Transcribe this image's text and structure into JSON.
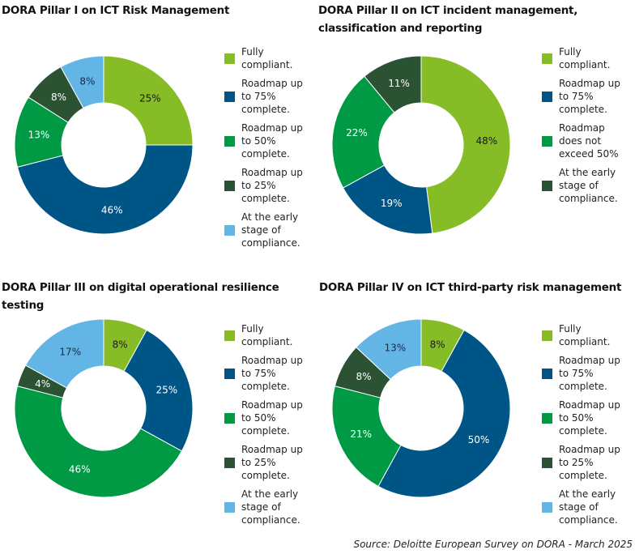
{
  "colors": {
    "fully_compliant": "#86BC25",
    "roadmap_75": "#005587",
    "roadmap_50": "#009A44",
    "roadmap_25": "#2C5234",
    "early_stage": "#62B5E5"
  },
  "chart_data": [
    {
      "type": "pie",
      "title": "DORA Pillar I on ICT Risk Management",
      "categories": [
        "Fully\ncompliant.",
        "Roadmap up\nto 75%\ncomplete.",
        "Roadmap up\nto 50%\ncomplete.",
        "Roadmap up\nto 25%\ncomplete.",
        "At the early\nstage of\ncompliance."
      ],
      "values": [
        25,
        46,
        13,
        8,
        8
      ],
      "labels": [
        "25%",
        "46%",
        "13%",
        "8%",
        "8%"
      ],
      "colors": [
        "#86BC25",
        "#005587",
        "#009A44",
        "#2C5234",
        "#62B5E5"
      ],
      "label_colors": [
        "#1a1a1a",
        "#ffffff",
        "#ffffff",
        "#ffffff",
        "#1a2a4a"
      ],
      "legend_colors": [
        "#86BC25",
        "#005587",
        "#009A44",
        "#2C5234",
        "#62B5E5"
      ],
      "legend": "right",
      "hole": "donut"
    },
    {
      "type": "pie",
      "title": "DORA Pillar II on ICT incident management, classification and reporting",
      "categories": [
        "Fully\ncompliant.",
        "Roadmap up\nto 75%\ncomplete.",
        "Roadmap\ndoes not\nexceed 50%",
        "At the early\nstage of\ncompliance."
      ],
      "values": [
        48,
        19,
        22,
        11
      ],
      "labels": [
        "48%",
        "19%",
        "22%",
        "11%"
      ],
      "colors": [
        "#86BC25",
        "#005587",
        "#009A44",
        "#2C5234"
      ],
      "label_colors": [
        "#1a1a1a",
        "#ffffff",
        "#ffffff",
        "#ffffff"
      ],
      "legend_colors": [
        "#86BC25",
        "#005587",
        "#009A44",
        "#2C5234"
      ],
      "legend": "right",
      "hole": "donut"
    },
    {
      "type": "pie",
      "title": "DORA Pillar III on digital operational resilience testing",
      "categories": [
        "Fully\ncompliant.",
        "Roadmap up\nto 75%\ncomplete.",
        "Roadmap up\nto 50%\ncomplete.",
        "Roadmap up\nto 25%\ncomplete.",
        "At the early\nstage of\ncompliance."
      ],
      "values": [
        8,
        25,
        46,
        4,
        17
      ],
      "labels": [
        "8%",
        "25%",
        "46%",
        "4%",
        "17%"
      ],
      "colors": [
        "#86BC25",
        "#005587",
        "#009A44",
        "#2C5234",
        "#62B5E5"
      ],
      "label_colors": [
        "#1a1a1a",
        "#ffffff",
        "#ffffff",
        "#ffffff",
        "#1a2a4a"
      ],
      "legend_colors": [
        "#86BC25",
        "#005587",
        "#009A44",
        "#2C5234",
        "#62B5E5"
      ],
      "legend": "right",
      "hole": "donut"
    },
    {
      "type": "pie",
      "title": "DORA Pillar IV on ICT third-party risk management",
      "categories": [
        "Fully\ncompliant.",
        "Roadmap up\nto 75%\ncomplete.",
        "Roadmap up\nto 50%\ncomplete.",
        "Roadmap up\nto 25%\ncomplete.",
        "At the early\nstage of\ncompliance."
      ],
      "values": [
        8,
        50,
        21,
        8,
        13
      ],
      "labels": [
        "8%",
        "50%",
        "21%",
        "8%",
        "13%"
      ],
      "colors": [
        "#86BC25",
        "#005587",
        "#009A44",
        "#2C5234",
        "#62B5E5"
      ],
      "label_colors": [
        "#1a1a1a",
        "#ffffff",
        "#ffffff",
        "#ffffff",
        "#1a2a4a"
      ],
      "legend_colors": [
        "#86BC25",
        "#005587",
        "#009A44",
        "#2C5234",
        "#62B5E5"
      ],
      "legend": "right",
      "hole": "donut"
    }
  ],
  "source": "Source: Deloitte European Survey on DORA - March 2025"
}
